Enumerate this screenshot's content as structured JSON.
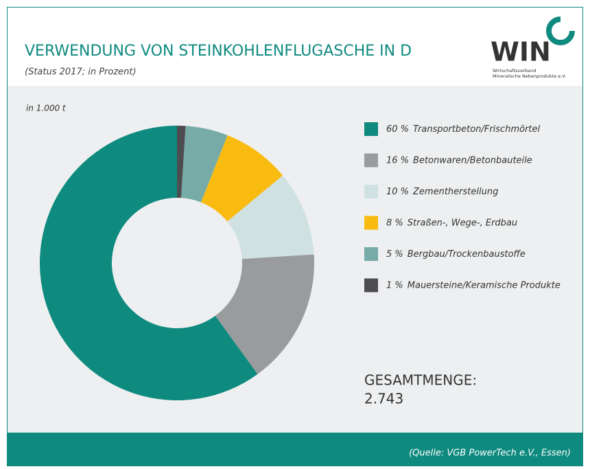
{
  "header": {
    "title": "VERWENDUNG VON STEINKOHLENFLUGASCHE IN D",
    "subtitle": "(Status 2017; in Prozent)",
    "logo": {
      "name": "WIN",
      "line1": "Wirtschaftsverband",
      "line2": "Mineralische Nebenprodukte e.V."
    }
  },
  "chart_data": {
    "type": "donut",
    "unit_note": "in 1.000 t",
    "categories": [
      "Transportbeton/Frischmörtel",
      "Betonwaren/Betonbauteile",
      "Zementherstellung",
      "Straßen-, Wege-, Erdbau",
      "Bergbau/Trockenbaustoffe",
      "Mauersteine/Keramische Produkte"
    ],
    "values": [
      60,
      16,
      10,
      8,
      5,
      1
    ],
    "value_labels": [
      "60 %",
      "16 %",
      "10 %",
      "8 %",
      "5 %",
      "1 %"
    ],
    "colors": [
      "#0e8a7f",
      "#9a9b9d",
      "#cfe1e0",
      "#f9bb10",
      "#76aba8",
      "#4d4d4f"
    ]
  },
  "total": {
    "label": "GESAMTMENGE:",
    "value": "2.743"
  },
  "footer": {
    "source": "(Quelle: VGB PowerTech e.V., Essen)"
  }
}
